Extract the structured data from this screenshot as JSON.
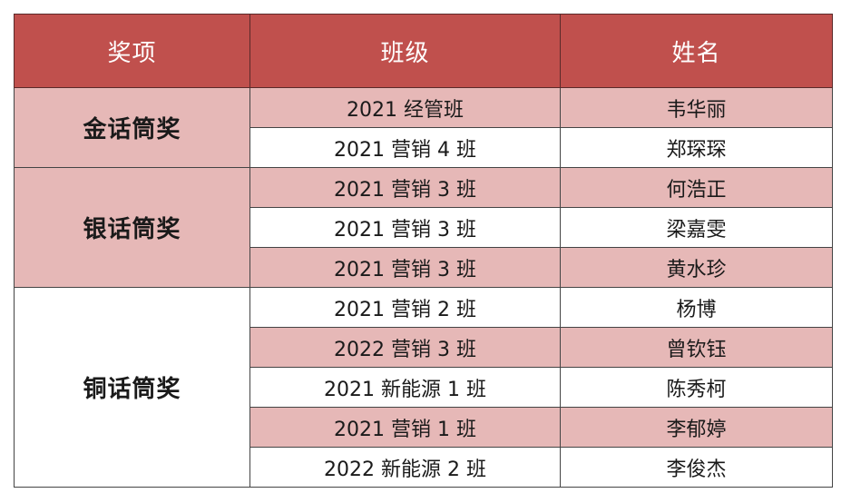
{
  "table": {
    "headers": {
      "award": "奖项",
      "class": "班级",
      "name": "姓名"
    },
    "groups": [
      {
        "award": "金话筒奖",
        "rows": [
          {
            "class": "2021 经管班",
            "name": "韦华丽"
          },
          {
            "class": "2021 营销 4 班",
            "name": "郑琛琛"
          }
        ]
      },
      {
        "award": "银话筒奖",
        "rows": [
          {
            "class": "2021 营销 3 班",
            "name": "何浩正"
          },
          {
            "class": "2021 营销 3 班",
            "name": "梁嘉雯"
          },
          {
            "class": "2021 营销 3 班",
            "name": "黄水珍"
          }
        ]
      },
      {
        "award": "铜话筒奖",
        "rows": [
          {
            "class": "2021 营销 2 班",
            "name": "杨博"
          },
          {
            "class": "2022 营销 3 班",
            "name": "曾钦钰"
          },
          {
            "class": "2021 新能源 1 班",
            "name": "陈秀柯"
          },
          {
            "class": "2021 营销 1 班",
            "name": "李郁婷"
          },
          {
            "class": "2022 新能源 2 班",
            "name": "李俊杰"
          }
        ]
      }
    ]
  },
  "colors": {
    "header_bg": "#c0504d",
    "header_text": "#ffffff",
    "shaded_row": "#e6b8b7",
    "plain_row": "#ffffff"
  }
}
